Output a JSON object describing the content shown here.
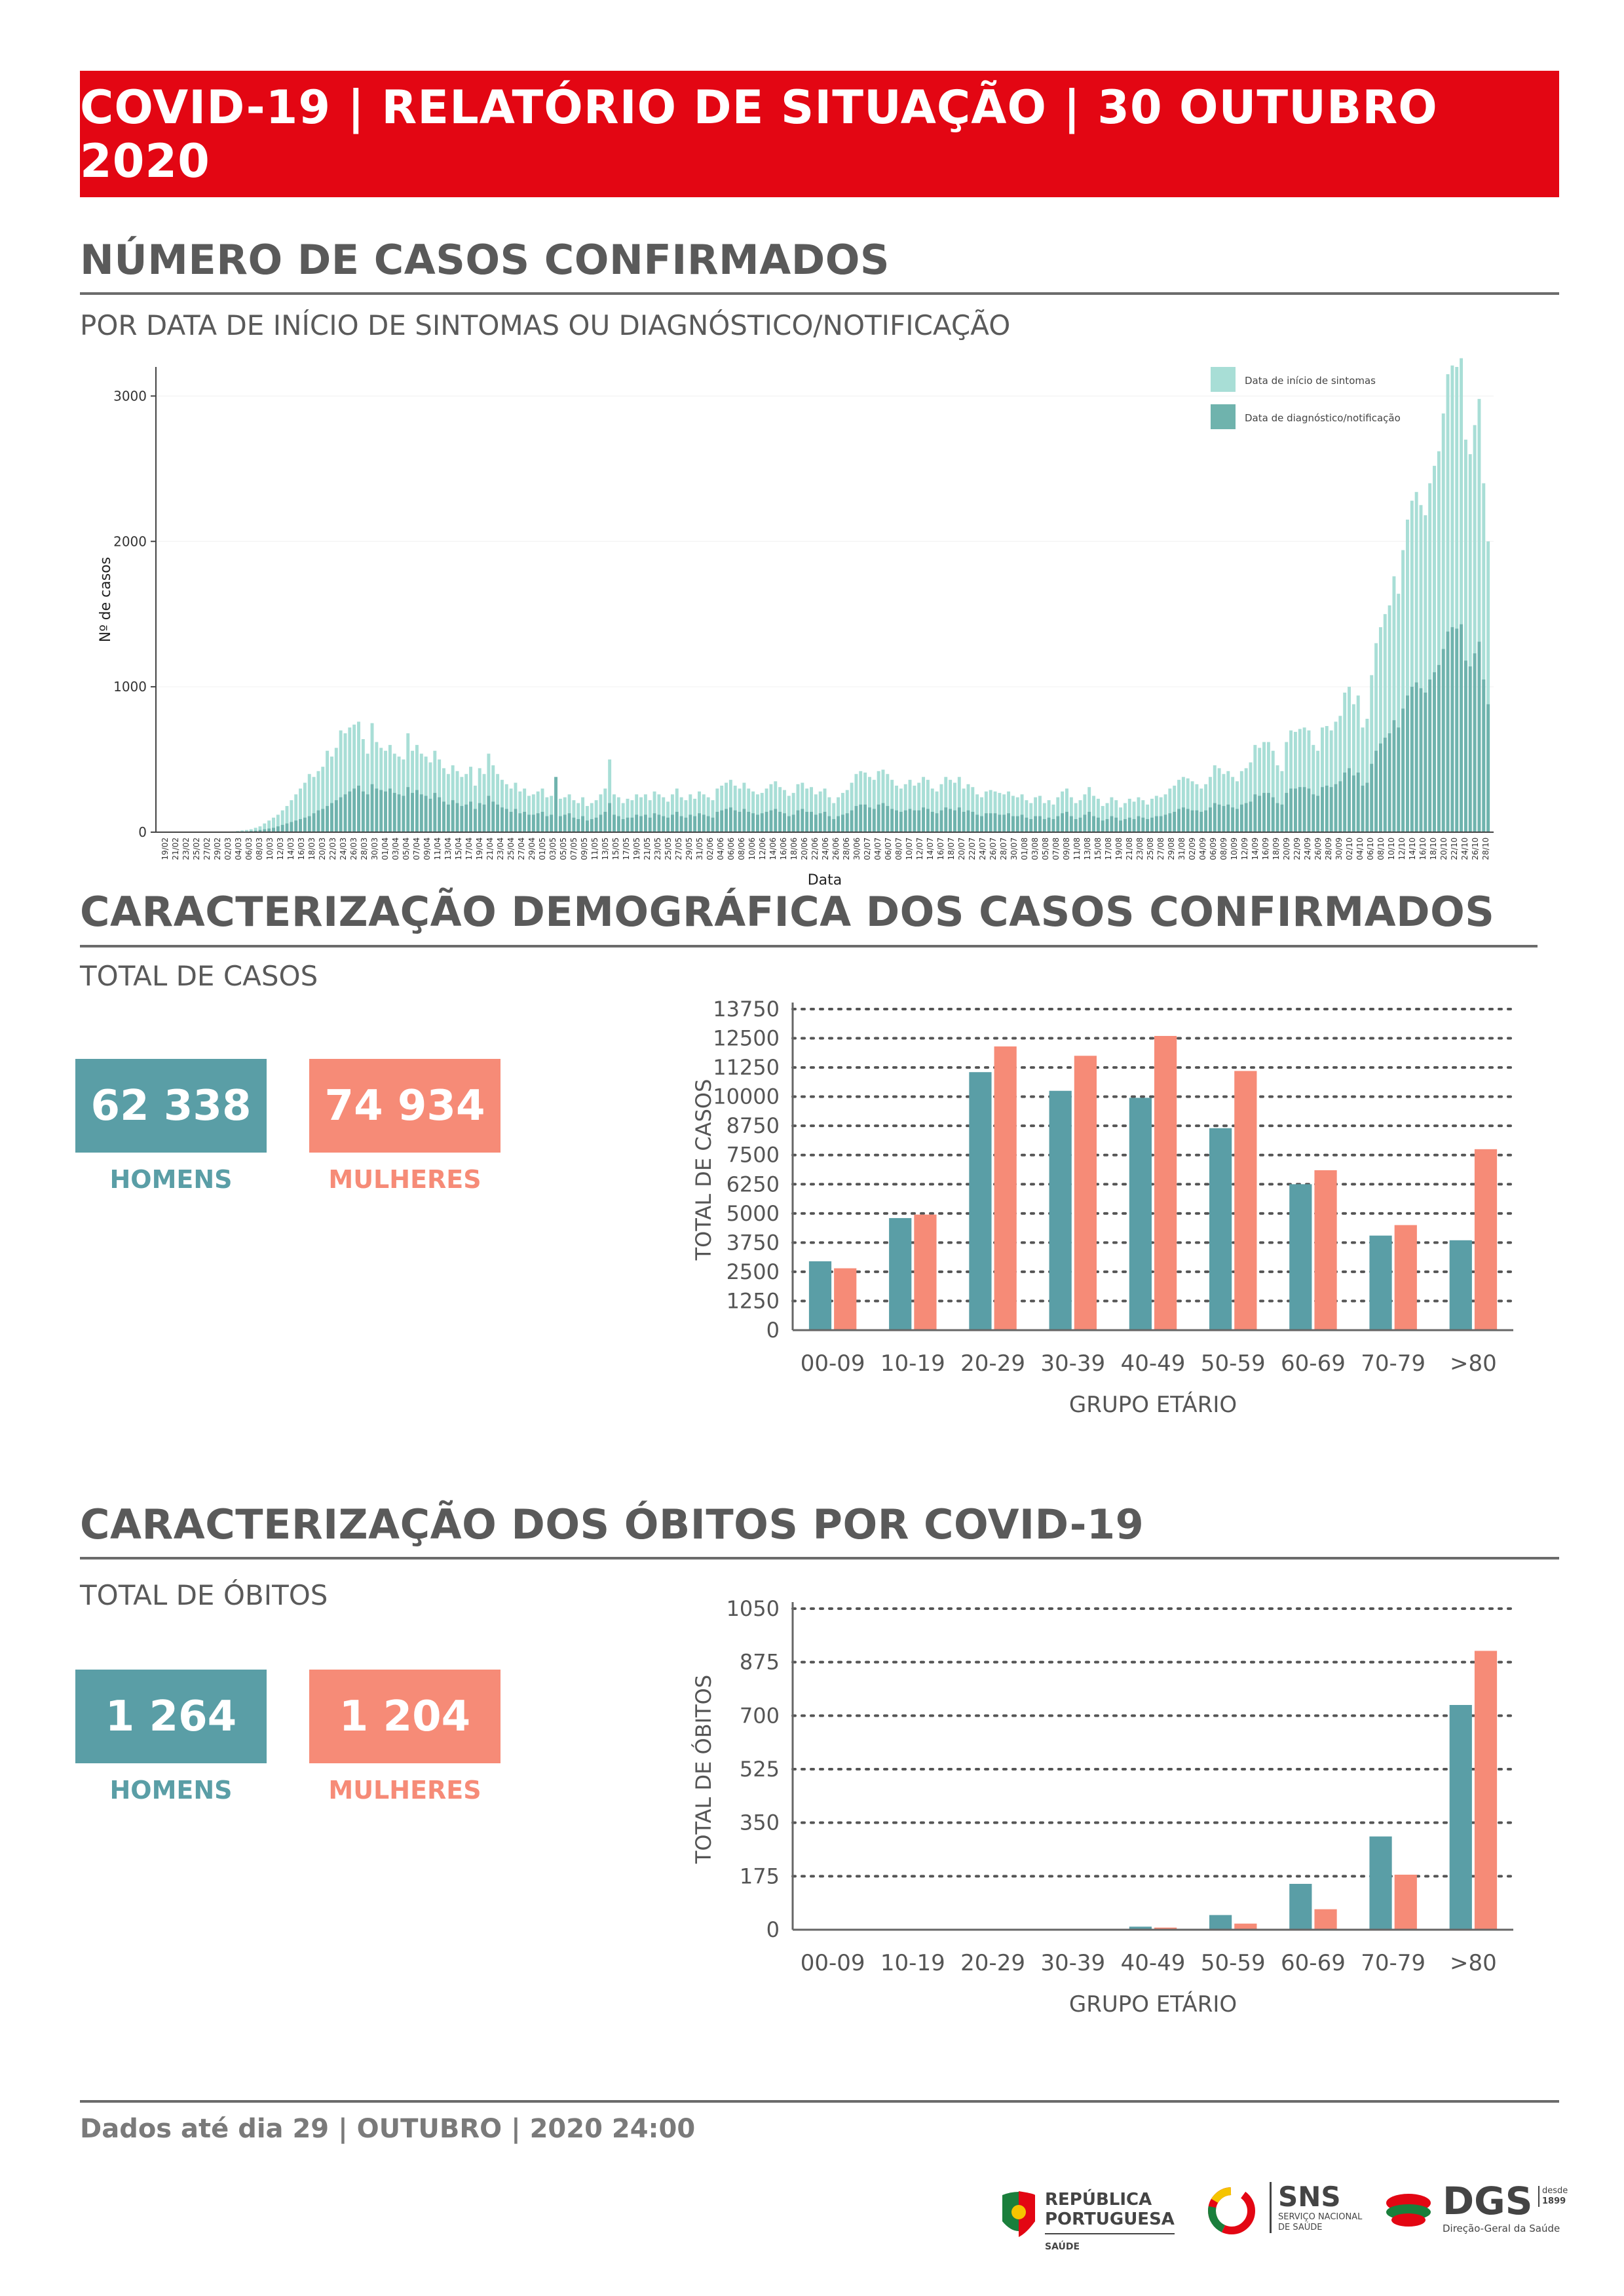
{
  "header": {
    "title": "COVID-19 | RELATÓRIO DE SITUAÇÃO | 30 OUTUBRO 2020"
  },
  "cases_section": {
    "title": "NÚMERO DE CASOS CONFIRMADOS",
    "subtitle": "POR DATA DE INÍCIO DE SINTOMAS OU DIAGNÓSTICO/NOTIFICAÇÃO"
  },
  "demo_section": {
    "title": "CARACTERIZAÇÃO DEMOGRÁFICA DOS CASOS CONFIRMADOS",
    "subtitle": "TOTAL DE CASOS",
    "men_value": "62 338",
    "men_label": "HOMENS",
    "women_value": "74 934",
    "women_label": "MULHERES"
  },
  "deaths_section": {
    "title": "CARACTERIZAÇÃO DOS ÓBITOS POR COVID-19",
    "subtitle": "TOTAL DE ÓBITOS",
    "men_value": "1 264",
    "men_label": "HOMENS",
    "women_value": "1 204",
    "women_label": "MULHERES"
  },
  "footer": {
    "text": "Dados até dia 29 | OUTUBRO | 2020 24:00"
  },
  "logos": {
    "rp_line1": "REPÚBLICA",
    "rp_line2": "PORTUGUESA",
    "rp_line3": "SAÚDE",
    "sns": "SNS",
    "sns_sub1": "SERVIÇO NACIONAL",
    "sns_sub2": "DE SAÚDE",
    "dgs": "DGS",
    "dgs_since1": "desde",
    "dgs_since2": "1899",
    "dgs_sub": "Direção-Geral da Saúde"
  },
  "colors": {
    "red": "#e30613",
    "teal": "#5a9ea6",
    "salmon": "#f68b77",
    "light_teal": "#a8ded6",
    "dark_teal": "#6fb3ad"
  },
  "chart_data": [
    {
      "type": "bar",
      "title": "",
      "xlabel": "Data",
      "ylabel": "Nº de casos",
      "ylim": [
        0,
        3200
      ],
      "yticks": [
        0,
        1000,
        2000,
        3000
      ],
      "legend": [
        "Data de início de sintomas",
        "Data de diagnóstico/notificação"
      ],
      "legend_position": "top-right",
      "x_tick_labels": [
        "19/02",
        "21/02",
        "23/02",
        "25/02",
        "27/02",
        "29/02",
        "02/03",
        "04/03",
        "06/03",
        "08/03",
        "10/03",
        "12/03",
        "14/03",
        "16/03",
        "18/03",
        "20/03",
        "22/03",
        "24/03",
        "26/03",
        "28/03",
        "30/03",
        "01/04",
        "03/04",
        "05/04",
        "07/04",
        "09/04",
        "11/04",
        "13/04",
        "15/04",
        "17/04",
        "19/04",
        "21/04",
        "23/04",
        "25/04",
        "27/04",
        "29/04",
        "01/05",
        "03/05",
        "05/05",
        "07/05",
        "09/05",
        "11/05",
        "13/05",
        "15/05",
        "17/05",
        "19/05",
        "21/05",
        "23/05",
        "25/05",
        "27/05",
        "29/05",
        "31/05",
        "02/06",
        "04/06",
        "06/06",
        "08/06",
        "10/06",
        "12/06",
        "14/06",
        "16/06",
        "18/06",
        "20/06",
        "22/06",
        "24/06",
        "26/06",
        "28/06",
        "30/06",
        "02/07",
        "04/07",
        "06/07",
        "08/07",
        "10/07",
        "12/07",
        "14/07",
        "16/07",
        "18/07",
        "20/07",
        "22/07",
        "24/07",
        "26/07",
        "28/07",
        "30/07",
        "01/08",
        "03/08",
        "05/08",
        "07/08",
        "09/08",
        "11/08",
        "13/08",
        "15/08",
        "17/08",
        "19/08",
        "21/08",
        "23/08",
        "25/08",
        "27/08",
        "29/08",
        "31/08",
        "02/09",
        "04/09",
        "06/09",
        "08/09",
        "10/09",
        "12/09",
        "14/09",
        "16/09",
        "18/09",
        "20/09",
        "22/09",
        "24/09",
        "26/09",
        "28/09",
        "30/09",
        "02/10",
        "04/10",
        "06/10",
        "08/10",
        "10/10",
        "12/10",
        "14/10",
        "16/10",
        "18/10",
        "20/10",
        "22/10",
        "24/10",
        "26/10",
        "28/10"
      ],
      "series": [
        {
          "name": "Data de início de sintomas",
          "values": [
            0,
            0,
            0,
            0,
            0,
            0,
            0,
            0,
            0,
            0,
            0,
            0,
            0,
            0,
            0,
            0,
            5,
            8,
            12,
            15,
            20,
            30,
            40,
            60,
            80,
            100,
            120,
            150,
            180,
            220,
            260,
            300,
            340,
            400,
            380,
            420,
            450,
            560,
            520,
            580,
            700,
            680,
            720,
            740,
            760,
            640,
            540,
            750,
            620,
            580,
            560,
            600,
            540,
            520,
            500,
            680,
            560,
            600,
            540,
            520,
            480,
            560,
            500,
            440,
            400,
            460,
            420,
            380,
            400,
            450,
            320,
            440,
            400,
            540,
            460,
            400,
            360,
            330,
            300,
            340,
            280,
            300,
            250,
            260,
            280,
            300,
            240,
            250,
            360,
            230,
            240,
            260,
            220,
            200,
            240,
            180,
            200,
            220,
            260,
            300,
            500,
            260,
            240,
            200,
            230,
            220,
            260,
            240,
            260,
            220,
            280,
            260,
            240,
            210,
            260,
            300,
            240,
            220,
            260,
            230,
            280,
            260,
            240,
            220,
            300,
            320,
            340,
            360,
            320,
            300,
            340,
            300,
            280,
            260,
            270,
            300,
            330,
            350,
            310,
            290,
            250,
            270,
            330,
            340,
            300,
            310,
            260,
            280,
            300,
            240,
            200,
            240,
            270,
            290,
            340,
            400,
            420,
            410,
            380,
            360,
            420,
            430,
            400,
            360,
            320,
            300,
            330,
            360,
            320,
            340,
            380,
            360,
            300,
            280,
            330,
            380,
            360,
            340,
            380,
            300,
            330,
            310,
            260,
            240,
            280,
            290,
            280,
            270,
            260,
            280,
            250,
            240,
            260,
            220,
            200,
            240,
            250,
            200,
            220,
            190,
            240,
            280,
            300,
            240,
            200,
            220,
            260,
            310,
            250,
            230,
            180,
            200,
            240,
            220,
            170,
            200,
            230,
            210,
            240,
            220,
            190,
            230,
            250,
            240,
            260,
            300,
            320,
            360,
            380,
            370,
            350,
            330,
            300,
            330,
            380,
            460,
            440,
            400,
            420,
            380,
            350,
            420,
            440,
            480,
            600,
            580,
            620,
            620,
            560,
            460,
            420,
            620,
            700,
            690,
            710,
            720,
            700,
            600,
            560,
            720,
            730,
            700,
            760,
            800,
            960,
            1000,
            880,
            940,
            720,
            780,
            1080,
            1300,
            1410,
            1500,
            1560,
            1760,
            1640,
            1940,
            2150,
            2280,
            2340,
            2250,
            2180,
            2400,
            2520,
            2620,
            2880,
            3150,
            3210,
            3200,
            3260,
            2700,
            2600,
            2800,
            2980,
            2400,
            2000
          ],
          "color": "#a8ded6"
        },
        {
          "name": "Data de diagnóstico/notificação",
          "values": [
            0,
            0,
            0,
            0,
            0,
            0,
            0,
            0,
            0,
            0,
            0,
            0,
            0,
            0,
            0,
            0,
            1,
            2,
            3,
            5,
            8,
            10,
            15,
            20,
            25,
            30,
            40,
            50,
            60,
            70,
            80,
            90,
            100,
            110,
            130,
            150,
            160,
            180,
            200,
            220,
            240,
            260,
            280,
            300,
            320,
            280,
            260,
            330,
            300,
            290,
            280,
            300,
            270,
            260,
            250,
            310,
            270,
            290,
            260,
            250,
            230,
            270,
            240,
            210,
            190,
            220,
            200,
            180,
            190,
            210,
            160,
            200,
            190,
            250,
            210,
            190,
            170,
            160,
            140,
            160,
            130,
            140,
            120,
            120,
            130,
            140,
            110,
            120,
            380,
            110,
            120,
            130,
            100,
            90,
            110,
            80,
            90,
            100,
            120,
            140,
            200,
            120,
            110,
            90,
            100,
            100,
            120,
            110,
            120,
            100,
            130,
            120,
            110,
            100,
            120,
            140,
            110,
            100,
            120,
            110,
            130,
            120,
            110,
            100,
            140,
            150,
            160,
            170,
            150,
            140,
            160,
            140,
            130,
            120,
            130,
            140,
            150,
            160,
            140,
            130,
            110,
            120,
            150,
            160,
            140,
            140,
            120,
            130,
            140,
            110,
            90,
            110,
            120,
            130,
            150,
            180,
            190,
            190,
            170,
            160,
            190,
            200,
            180,
            160,
            150,
            140,
            150,
            160,
            150,
            150,
            170,
            160,
            140,
            130,
            150,
            170,
            160,
            150,
            170,
            140,
            150,
            140,
            120,
            110,
            130,
            130,
            130,
            120,
            120,
            130,
            110,
            110,
            120,
            100,
            90,
            110,
            110,
            90,
            100,
            90,
            110,
            130,
            140,
            110,
            90,
            100,
            120,
            140,
            110,
            100,
            80,
            90,
            110,
            100,
            80,
            90,
            100,
            90,
            110,
            100,
            90,
            100,
            110,
            110,
            120,
            130,
            140,
            160,
            170,
            160,
            150,
            150,
            140,
            150,
            170,
            200,
            190,
            180,
            190,
            170,
            160,
            190,
            200,
            210,
            260,
            250,
            270,
            270,
            240,
            200,
            190,
            270,
            300,
            300,
            310,
            310,
            300,
            260,
            250,
            310,
            320,
            310,
            330,
            350,
            410,
            440,
            390,
            410,
            320,
            340,
            470,
            560,
            610,
            650,
            680,
            770,
            720,
            850,
            940,
            1000,
            1030,
            990,
            960,
            1050,
            1100,
            1150,
            1260,
            1380,
            1410,
            1400,
            1430,
            1180,
            1140,
            1230,
            1310,
            1050,
            880
          ],
          "color": "#6fb3ad"
        }
      ]
    },
    {
      "type": "bar",
      "title": "",
      "xlabel": "GRUPO ETÁRIO",
      "ylabel": "TOTAL DE CASOS",
      "ylim": [
        0,
        13750
      ],
      "yticks": [
        0,
        1250,
        2500,
        3750,
        5000,
        6250,
        7500,
        8750,
        10000,
        11250,
        12500,
        13750
      ],
      "categories": [
        "00-09",
        "10-19",
        "20-29",
        "30-39",
        "40-49",
        "50-59",
        "60-69",
        "70-79",
        ">80"
      ],
      "series": [
        {
          "name": "Homens",
          "values": [
            2950,
            4800,
            11050,
            10250,
            9950,
            8650,
            6250,
            4050,
            3850
          ],
          "color": "#5a9ea6"
        },
        {
          "name": "Mulheres",
          "values": [
            2650,
            4950,
            12150,
            11750,
            12600,
            11100,
            6850,
            4500,
            7750
          ],
          "color": "#f68b77"
        }
      ]
    },
    {
      "type": "bar",
      "title": "",
      "xlabel": "GRUPO ETÁRIO",
      "ylabel": "TOTAL DE ÓBITOS",
      "ylim": [
        0,
        1050
      ],
      "yticks": [
        0,
        175,
        350,
        525,
        700,
        875,
        1050
      ],
      "categories": [
        "00-09",
        "10-19",
        "20-29",
        "30-39",
        "40-49",
        "50-59",
        "60-69",
        "70-79",
        ">80"
      ],
      "series": [
        {
          "name": "Homens",
          "values": [
            0,
            0,
            1,
            1,
            10,
            48,
            150,
            305,
            735
          ],
          "color": "#5a9ea6"
        },
        {
          "name": "Mulheres",
          "values": [
            0,
            0,
            0,
            1,
            7,
            20,
            67,
            180,
            912
          ],
          "color": "#f68b77"
        }
      ]
    }
  ]
}
